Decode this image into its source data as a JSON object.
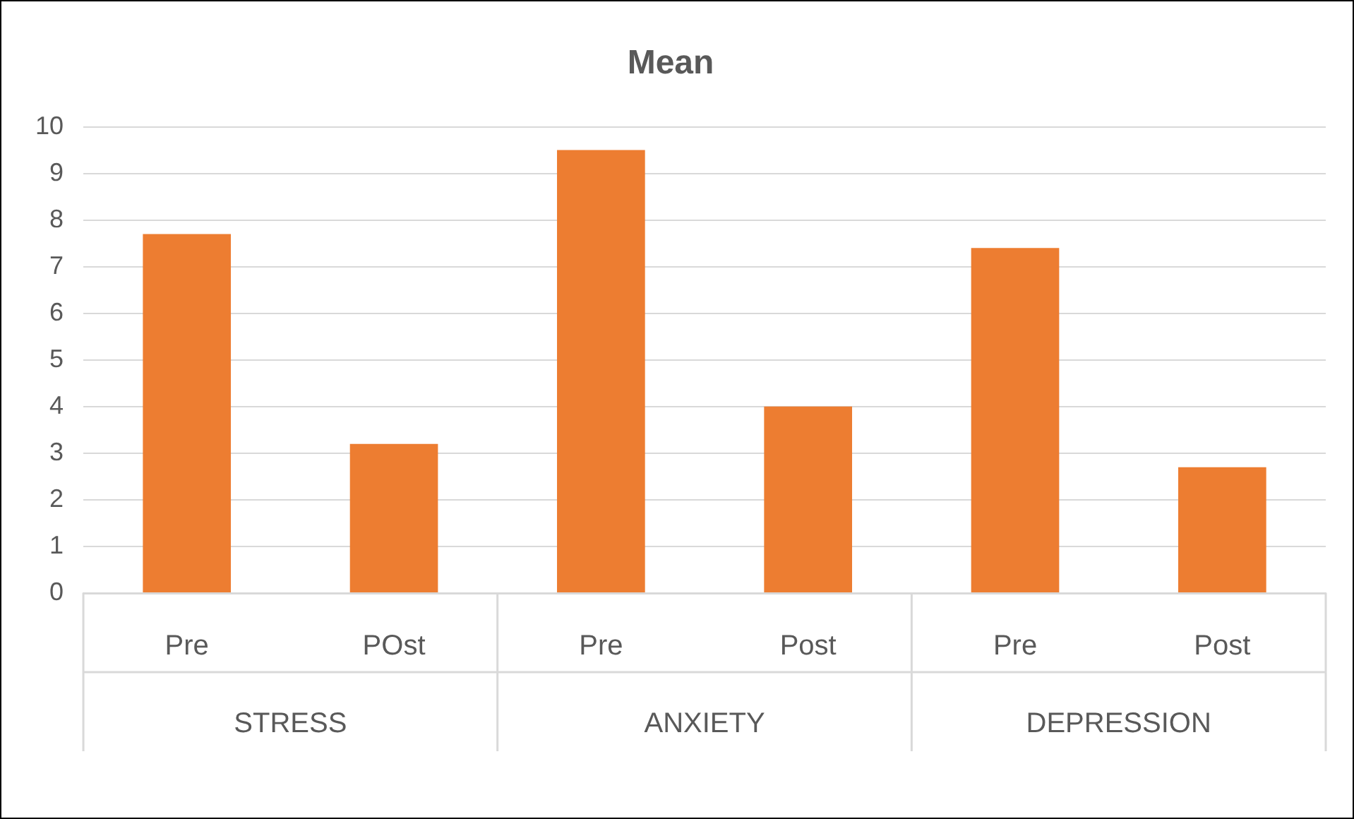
{
  "chart_data": {
    "type": "bar",
    "title": "Mean",
    "categories": [
      "Pre",
      "POst",
      "Pre",
      "Post",
      "Pre",
      "Post"
    ],
    "values": [
      7.7,
      3.2,
      9.5,
      4.0,
      7.4,
      2.7
    ],
    "color": "#ed7d31",
    "ylim": [
      0,
      10
    ],
    "yticks": [
      0,
      1,
      2,
      3,
      4,
      5,
      6,
      7,
      8,
      9,
      10
    ],
    "grid": "y",
    "legend": false,
    "annotations": [
      "STRESS",
      "ANXIETY",
      "DEPRESSION"
    ]
  }
}
